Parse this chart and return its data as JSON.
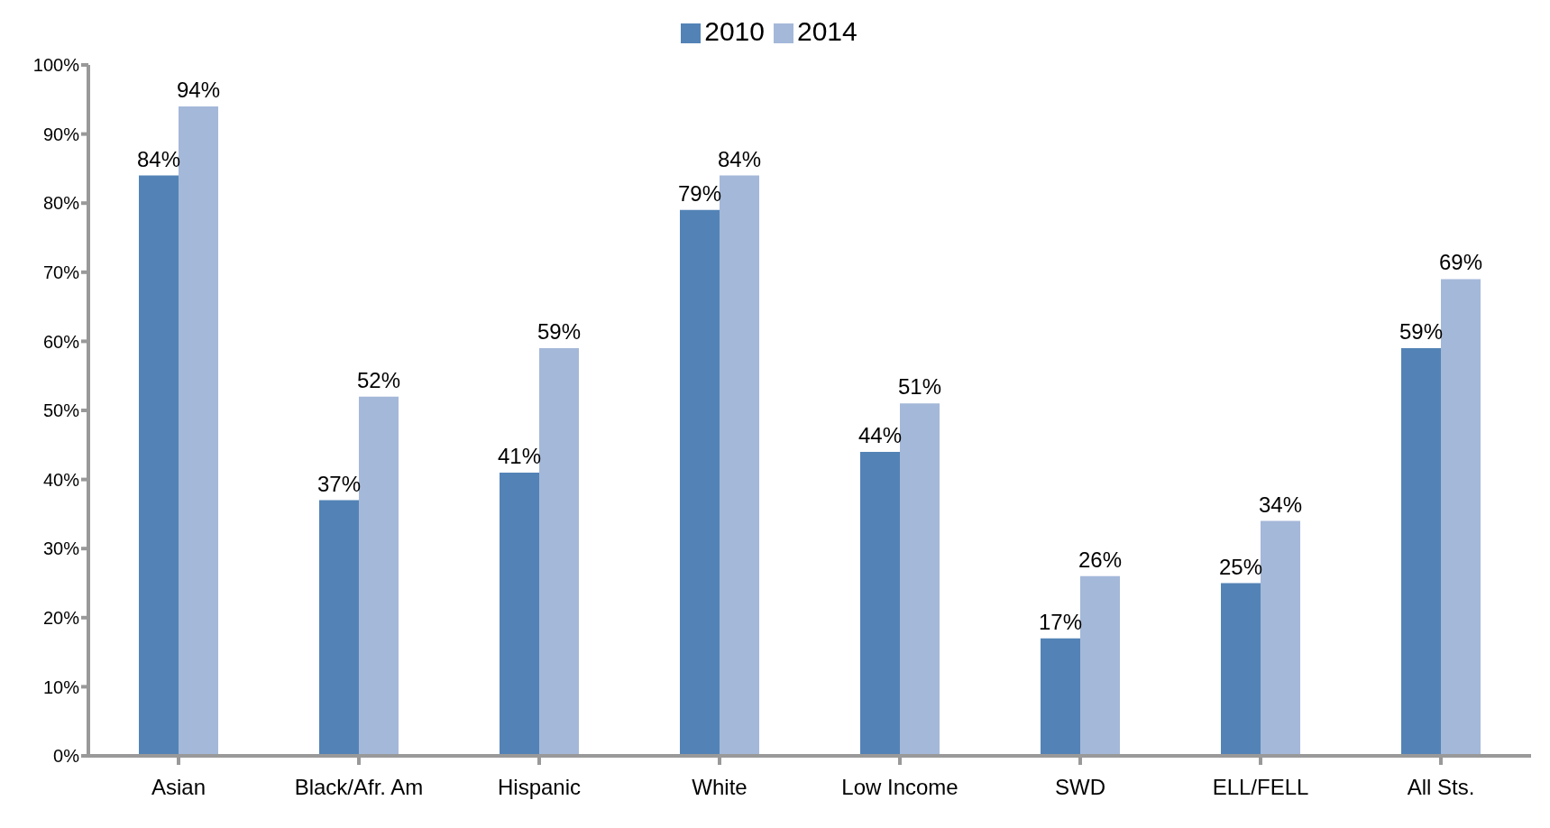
{
  "chart_data": {
    "type": "bar",
    "categories": [
      "Asian",
      "Black/Afr. Am",
      "Hispanic",
      "White",
      "Low Income",
      "SWD",
      "ELL/FELL",
      "All Sts."
    ],
    "series": [
      {
        "name": "2010",
        "color": "#5383b6",
        "values": [
          84,
          37,
          41,
          79,
          44,
          17,
          25,
          59
        ],
        "value_labels": [
          "84%",
          "37%",
          "41%",
          "79%",
          "44%",
          "17%",
          "25%",
          "59%"
        ]
      },
      {
        "name": "2014",
        "color": "#a4b8d9",
        "values": [
          94,
          52,
          59,
          84,
          51,
          26,
          34,
          69
        ],
        "value_labels": [
          "94%",
          "52%",
          "59%",
          "84%",
          "51%",
          "26%",
          "34%",
          "69%"
        ]
      }
    ],
    "ylim": [
      0,
      100
    ],
    "yticks": [
      {
        "value": 0,
        "label": "0%"
      },
      {
        "value": 10,
        "label": "10%"
      },
      {
        "value": 20,
        "label": "20%"
      },
      {
        "value": 30,
        "label": "30%"
      },
      {
        "value": 40,
        "label": "40%"
      },
      {
        "value": 50,
        "label": "50%"
      },
      {
        "value": 60,
        "label": "60%"
      },
      {
        "value": 70,
        "label": "70%"
      },
      {
        "value": 80,
        "label": "80%"
      },
      {
        "value": 90,
        "label": "90%"
      },
      {
        "value": 100,
        "label": "100%"
      }
    ],
    "legend": "top"
  }
}
